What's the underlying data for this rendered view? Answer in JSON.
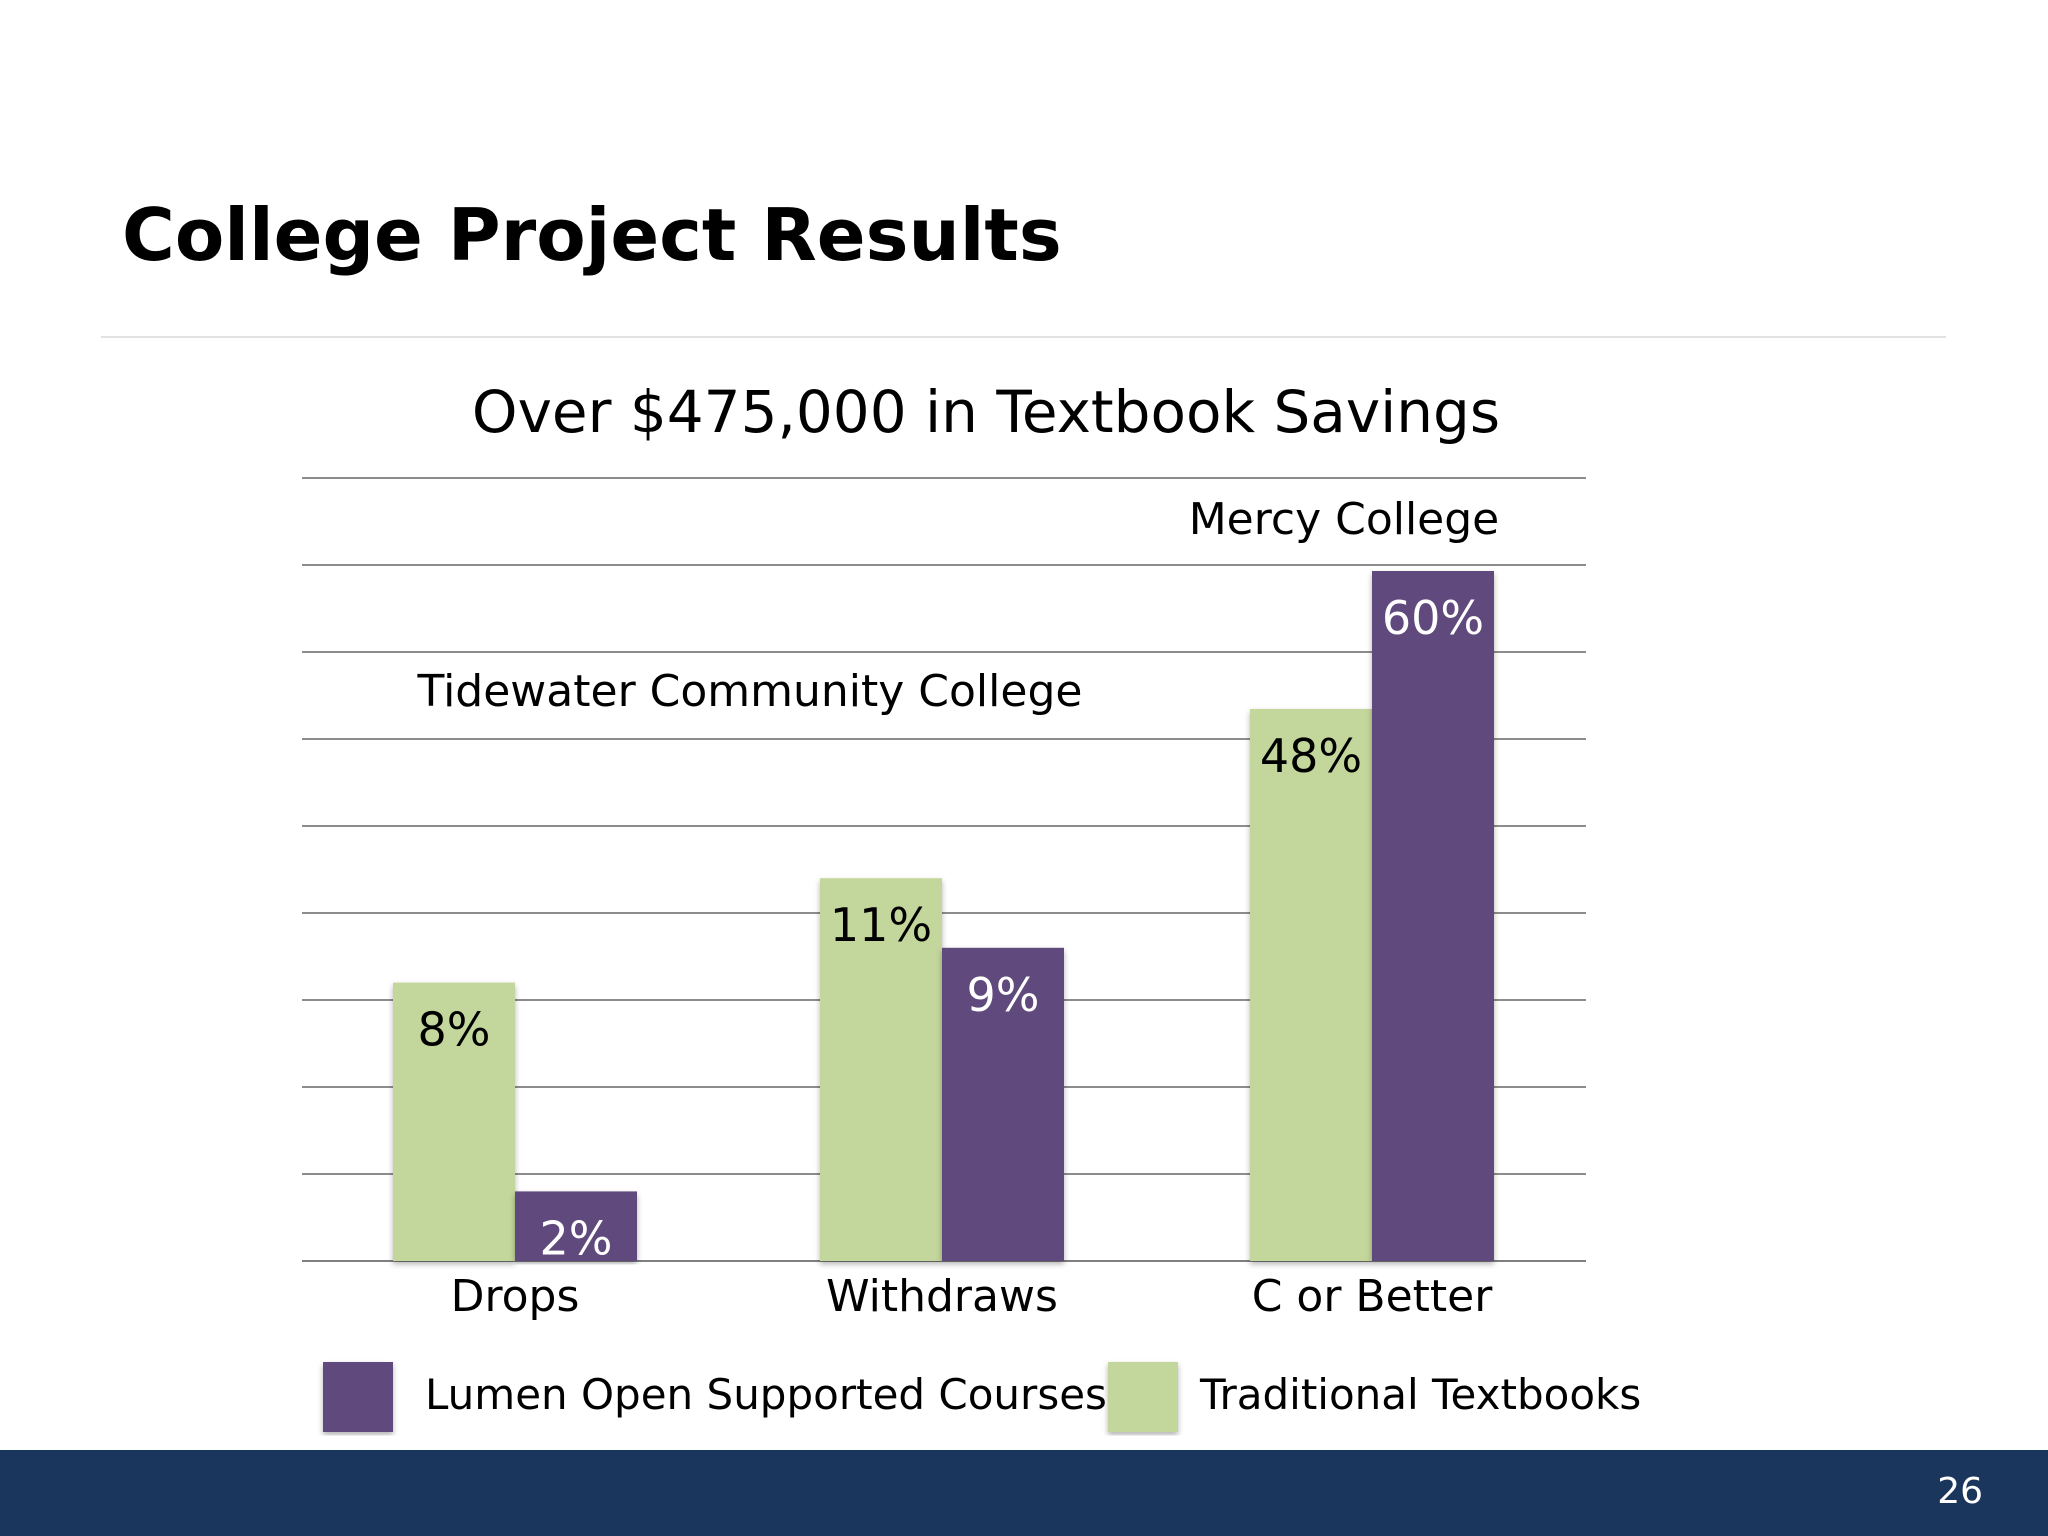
{
  "slide": {
    "title": "College Project Results",
    "page_number": "26"
  },
  "colors": {
    "lumen": "#604a7b",
    "traditional": "#c3d69b",
    "gridline": "#8c8c8c",
    "footer": "#1b365c"
  },
  "chart_data": {
    "type": "bar",
    "title": "Over $475,000 in Textbook Savings",
    "categories": [
      "Drops",
      "Withdraws",
      "C or Better"
    ],
    "series": [
      {
        "name": "Traditional Textbooks",
        "color": "#c3d69b",
        "values": [
          8,
          11,
          48
        ],
        "labels": [
          "8%",
          "11%",
          "48%"
        ]
      },
      {
        "name": "Lumen Open Supported Courses",
        "color": "#604a7b",
        "values": [
          2,
          9,
          60
        ],
        "labels": [
          "2%",
          "9%",
          "60%"
        ]
      }
    ],
    "annotations": [
      "Tidewater Community College",
      "Mercy College"
    ],
    "legend": {
      "position": "bottom",
      "order": [
        "Lumen Open Supported Courses",
        "Traditional Textbooks"
      ]
    },
    "grid": true,
    "xlabel": "",
    "ylabel": "",
    "y_axis_visible": false
  }
}
